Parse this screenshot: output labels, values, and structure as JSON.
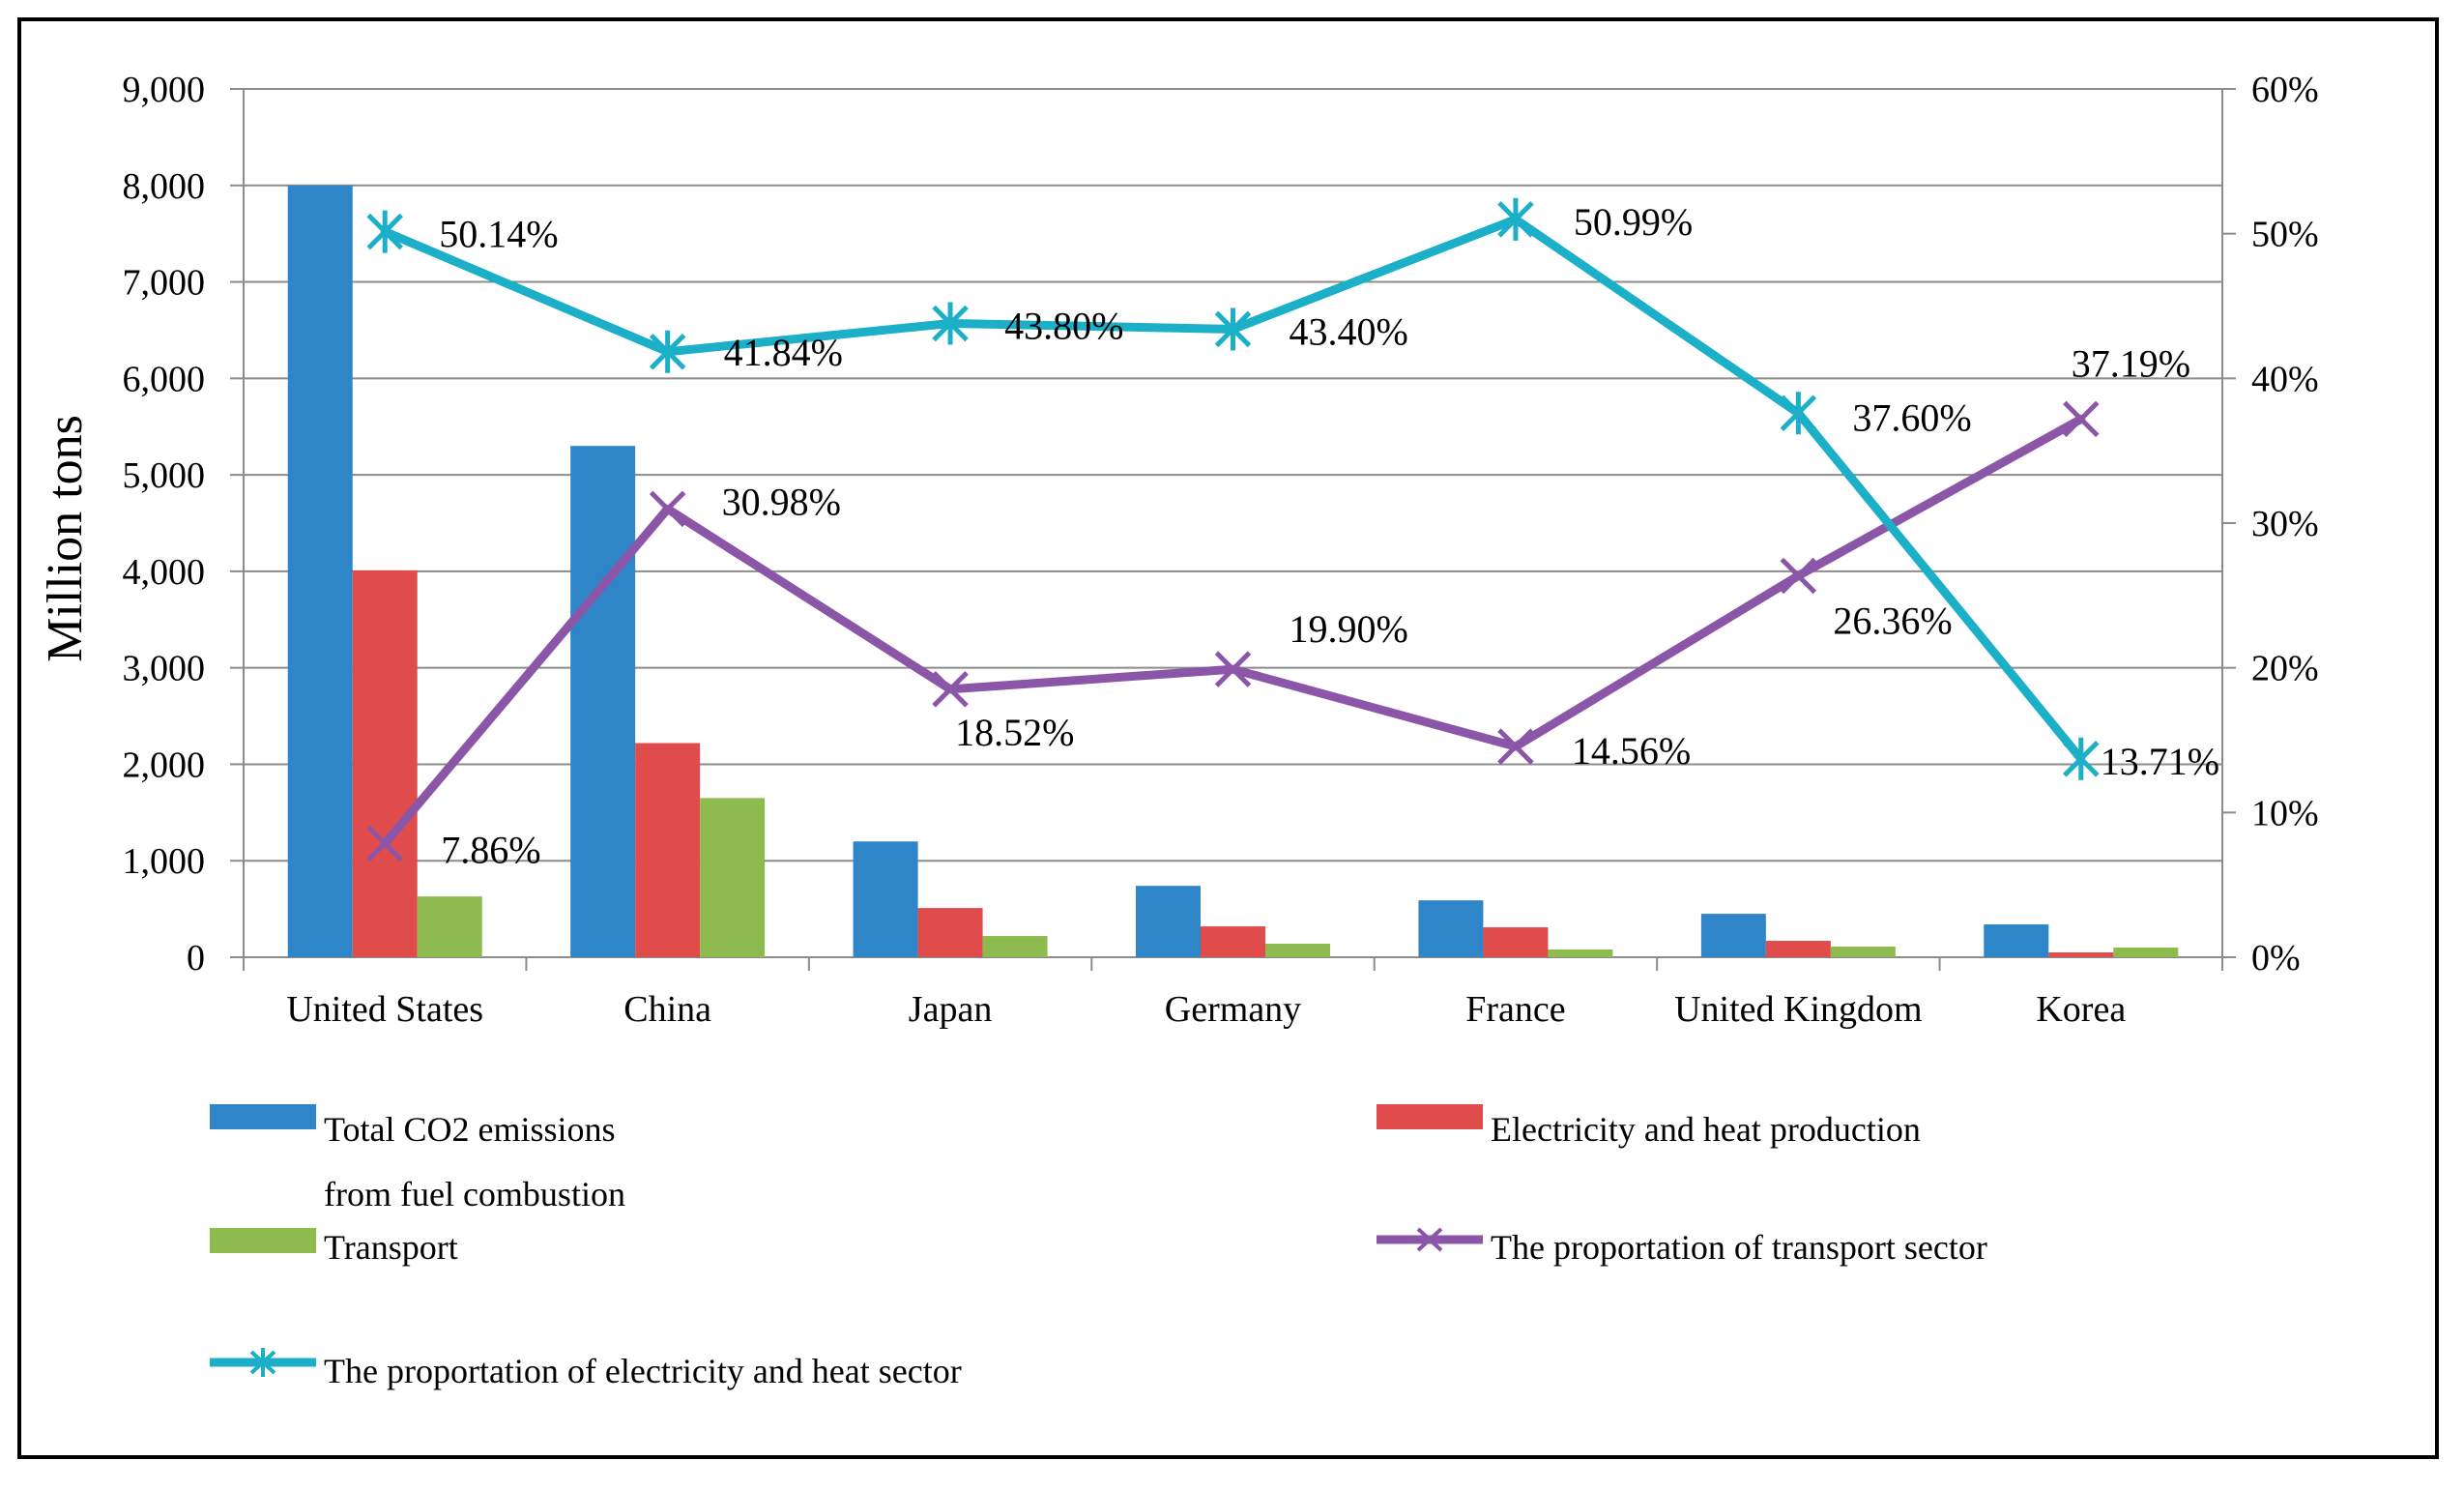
{
  "chart_data": {
    "type": "bar+line",
    "categories": [
      "United States",
      "China",
      "Japan",
      "Germany",
      "France",
      "United Kingdom",
      "Korea"
    ],
    "ylabel": "Million tons",
    "ylim": [
      0,
      9000
    ],
    "yticks": [
      0,
      1000,
      2000,
      3000,
      4000,
      5000,
      6000,
      7000,
      8000,
      9000
    ],
    "ytick_labels": [
      "0",
      "1,000",
      "2,000",
      "3,000",
      "4,000",
      "5,000",
      "6,000",
      "7,000",
      "8,000",
      "9,000"
    ],
    "y2lim": [
      0,
      60
    ],
    "y2ticks": [
      0,
      10,
      20,
      30,
      40,
      50,
      60
    ],
    "y2tick_labels": [
      "0%",
      "10%",
      "20%",
      "30%",
      "40%",
      "50%",
      "60%"
    ],
    "grid": true,
    "bar_series": [
      {
        "name": "Total CO2 emissions from fuel combustion",
        "color": "#2E86C8",
        "values": [
          8000,
          5300,
          1200,
          740,
          590,
          450,
          340
        ]
      },
      {
        "name": "Electricity and heat production",
        "color": "#E04B4B",
        "values": [
          4010,
          2220,
          510,
          320,
          310,
          170,
          50
        ]
      },
      {
        "name": "Transport",
        "color": "#8DBB4E",
        "values": [
          630,
          1650,
          220,
          140,
          80,
          110,
          100
        ]
      }
    ],
    "line_series": [
      {
        "name": "The proportation of transport sector",
        "color": "#8B56A8",
        "marker": "x",
        "values": [
          7.86,
          30.98,
          18.52,
          19.9,
          14.56,
          26.36,
          37.19
        ],
        "labels": [
          "7.86%",
          "30.98%",
          "18.52%",
          "19.90%",
          "14.56%",
          "26.36%",
          "37.19%"
        ]
      },
      {
        "name": "The proportation of electricity and heat sector",
        "color": "#1BAFC8",
        "marker": "star",
        "values": [
          50.14,
          41.84,
          43.8,
          43.4,
          50.99,
          37.6,
          13.71
        ],
        "labels": [
          "50.14%",
          "41.84%",
          "43.80%",
          "43.40%",
          "50.99%",
          "37.60%",
          "13.71%"
        ]
      }
    ],
    "legend": {
      "total_line1": "Total CO2 emissions",
      "total_line2": "from fuel combustion",
      "electricity": "Electricity and heat production",
      "transport": "Transport",
      "transport_share": "The proportation  of transport sector",
      "electricity_share": "The proportation  of electricity and heat sector"
    }
  }
}
